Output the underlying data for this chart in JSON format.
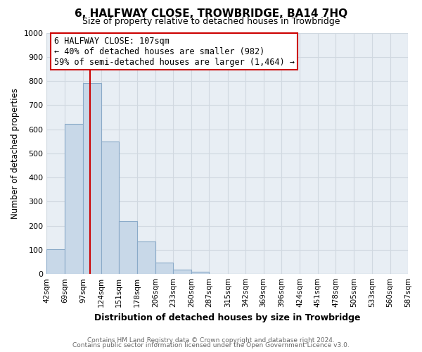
{
  "title": "6, HALFWAY CLOSE, TROWBRIDGE, BA14 7HQ",
  "subtitle": "Size of property relative to detached houses in Trowbridge",
  "xlabel": "Distribution of detached houses by size in Trowbridge",
  "ylabel": "Number of detached properties",
  "bar_color": "#c8d8e8",
  "bar_edge_color": "#8aaac8",
  "bin_labels": [
    "42sqm",
    "69sqm",
    "97sqm",
    "124sqm",
    "151sqm",
    "178sqm",
    "206sqm",
    "233sqm",
    "260sqm",
    "287sqm",
    "315sqm",
    "342sqm",
    "369sqm",
    "396sqm",
    "424sqm",
    "451sqm",
    "478sqm",
    "505sqm",
    "533sqm",
    "560sqm",
    "587sqm"
  ],
  "bin_edges": [
    42,
    69,
    97,
    124,
    151,
    178,
    206,
    233,
    260,
    287,
    315,
    342,
    369,
    396,
    424,
    451,
    478,
    505,
    533,
    560,
    587
  ],
  "bar_heights": [
    103,
    622,
    790,
    548,
    220,
    135,
    46,
    18,
    10,
    0,
    0,
    0,
    0,
    0,
    0,
    0,
    0,
    0,
    0,
    0
  ],
  "vline_x": 107,
  "vline_color": "#cc0000",
  "annotation_line1": "6 HALFWAY CLOSE: 107sqm",
  "annotation_line2": "← 40% of detached houses are smaller (982)",
  "annotation_line3": "59% of semi-detached houses are larger (1,464) →",
  "ylim": [
    0,
    1000
  ],
  "yticks": [
    0,
    100,
    200,
    300,
    400,
    500,
    600,
    700,
    800,
    900,
    1000
  ],
  "footer_line1": "Contains HM Land Registry data © Crown copyright and database right 2024.",
  "footer_line2": "Contains public sector information licensed under the Open Government Licence v3.0.",
  "bg_color": "#ffffff",
  "plot_bg_color": "#e8eef4",
  "grid_color": "#d0d8e0"
}
